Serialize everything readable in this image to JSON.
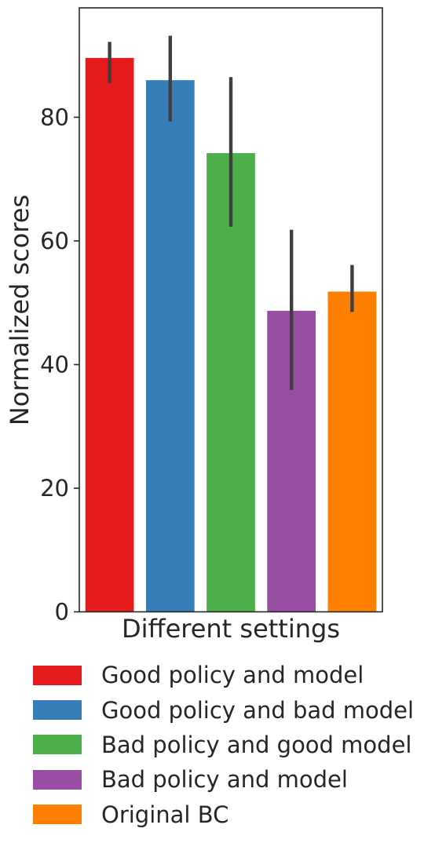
{
  "chart_data": {
    "type": "bar",
    "xlabel": "Different settings",
    "ylabel": "Normalized scores",
    "ylim": [
      0,
      97.7
    ],
    "yticks": [
      0,
      20,
      40,
      60,
      80
    ],
    "grid": false,
    "legend_position": "bottom",
    "series": [
      {
        "name": "Good policy and model",
        "value": 89.6,
        "ci": [
          85.5,
          92.2
        ],
        "color": "#e41a1c"
      },
      {
        "name": "Good policy and bad model",
        "value": 86.0,
        "ci": [
          79.3,
          93.2
        ],
        "color": "#377eb8"
      },
      {
        "name": "Bad policy and good model",
        "value": 74.2,
        "ci": [
          62.3,
          86.5
        ],
        "color": "#4daf4a"
      },
      {
        "name": "Bad policy and model",
        "value": 48.7,
        "ci": [
          35.9,
          61.8
        ],
        "color": "#984ea3"
      },
      {
        "name": "Original BC",
        "value": 51.8,
        "ci": [
          48.5,
          56.1
        ],
        "color": "#ff7f00"
      }
    ]
  }
}
